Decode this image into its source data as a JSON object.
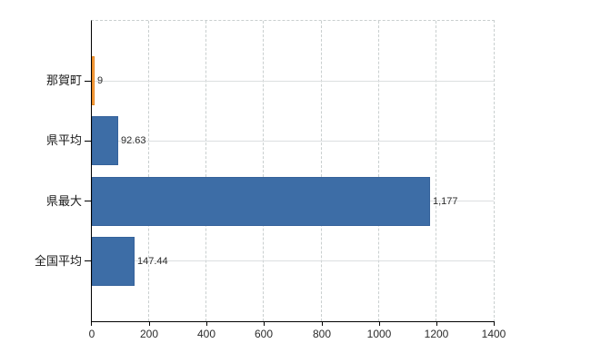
{
  "chart_data": {
    "type": "bar",
    "orientation": "horizontal",
    "title": "",
    "xlabel": "",
    "ylabel": "",
    "categories": [
      "那賀町",
      "県平均",
      "県最大",
      "全国平均"
    ],
    "values": [
      9,
      92.63,
      1177,
      147.44
    ],
    "value_labels": [
      "9",
      "92.63",
      "1,177",
      "147.44"
    ],
    "bar_colors": [
      "#fba44c",
      "#3d6da6",
      "#3d6da6",
      "#3d6da6"
    ],
    "bar_border_colors": [
      "#e1821a",
      "#35629b",
      "#35629b",
      "#35629b"
    ],
    "xlim": [
      0,
      1400
    ],
    "x_ticks": [
      0,
      200,
      400,
      600,
      800,
      1000,
      1200,
      1400
    ],
    "grid": true,
    "legend": false
  },
  "colors": {
    "background": "#ffffff",
    "axis": "#000000",
    "vertical_gridline": "#c9cfcf",
    "horizontal_gridline": "#dcdfe0",
    "text": "#2b2b2b"
  }
}
